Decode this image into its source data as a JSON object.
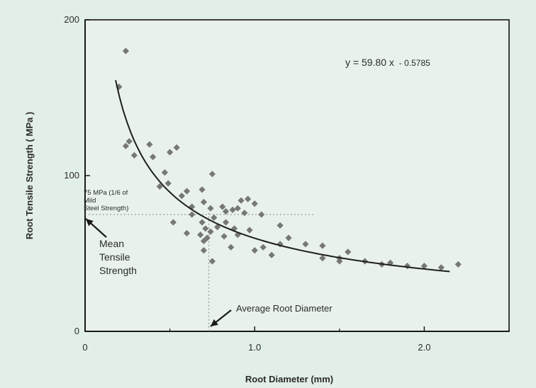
{
  "chart_data": {
    "type": "scatter",
    "title": "",
    "xlabel": "Root Diameter (mm)",
    "ylabel": "Root Tensile Strength (  MPa )",
    "xlim": [
      0,
      2.5
    ],
    "ylim": [
      0,
      200
    ],
    "x_ticks": [
      {
        "value": 0,
        "label": "0"
      },
      {
        "value": 1.0,
        "label": "1.0"
      },
      {
        "value": 2.0,
        "label": "2.0"
      }
    ],
    "y_ticks": [
      {
        "value": 0,
        "label": "0"
      },
      {
        "value": 100,
        "label": "100"
      },
      {
        "value": 200,
        "label": "200"
      }
    ],
    "grid": false,
    "points": [
      {
        "x": 0.24,
        "y": 180
      },
      {
        "x": 0.2,
        "y": 157
      },
      {
        "x": 0.24,
        "y": 119
      },
      {
        "x": 0.26,
        "y": 122
      },
      {
        "x": 0.29,
        "y": 113
      },
      {
        "x": 0.38,
        "y": 120
      },
      {
        "x": 0.4,
        "y": 112
      },
      {
        "x": 0.47,
        "y": 102
      },
      {
        "x": 0.5,
        "y": 115
      },
      {
        "x": 0.54,
        "y": 118
      },
      {
        "x": 0.44,
        "y": 93
      },
      {
        "x": 0.49,
        "y": 95
      },
      {
        "x": 0.57,
        "y": 87
      },
      {
        "x": 0.6,
        "y": 90
      },
      {
        "x": 0.69,
        "y": 91
      },
      {
        "x": 0.75,
        "y": 101
      },
      {
        "x": 0.63,
        "y": 80
      },
      {
        "x": 0.63,
        "y": 75
      },
      {
        "x": 0.7,
        "y": 83
      },
      {
        "x": 0.74,
        "y": 79
      },
      {
        "x": 0.76,
        "y": 73
      },
      {
        "x": 0.81,
        "y": 80
      },
      {
        "x": 0.83,
        "y": 77
      },
      {
        "x": 0.87,
        "y": 78
      },
      {
        "x": 0.9,
        "y": 79
      },
      {
        "x": 0.94,
        "y": 76
      },
      {
        "x": 0.96,
        "y": 85
      },
      {
        "x": 1.0,
        "y": 82
      },
      {
        "x": 0.92,
        "y": 84
      },
      {
        "x": 1.04,
        "y": 75
      },
      {
        "x": 0.69,
        "y": 70
      },
      {
        "x": 0.71,
        "y": 66
      },
      {
        "x": 0.74,
        "y": 64
      },
      {
        "x": 0.78,
        "y": 67
      },
      {
        "x": 0.83,
        "y": 70
      },
      {
        "x": 0.88,
        "y": 66
      },
      {
        "x": 0.68,
        "y": 62
      },
      {
        "x": 0.7,
        "y": 58
      },
      {
        "x": 0.72,
        "y": 60
      },
      {
        "x": 0.82,
        "y": 61
      },
      {
        "x": 0.9,
        "y": 62
      },
      {
        "x": 0.97,
        "y": 65
      },
      {
        "x": 0.6,
        "y": 63
      },
      {
        "x": 0.52,
        "y": 70
      },
      {
        "x": 0.7,
        "y": 52
      },
      {
        "x": 0.75,
        "y": 45
      },
      {
        "x": 0.86,
        "y": 54
      },
      {
        "x": 1.0,
        "y": 52
      },
      {
        "x": 1.05,
        "y": 54
      },
      {
        "x": 1.15,
        "y": 56
      },
      {
        "x": 1.1,
        "y": 49
      },
      {
        "x": 1.15,
        "y": 68
      },
      {
        "x": 1.2,
        "y": 60
      },
      {
        "x": 1.3,
        "y": 56
      },
      {
        "x": 1.4,
        "y": 55
      },
      {
        "x": 1.4,
        "y": 47
      },
      {
        "x": 1.5,
        "y": 47
      },
      {
        "x": 1.5,
        "y": 45
      },
      {
        "x": 1.55,
        "y": 51
      },
      {
        "x": 1.65,
        "y": 45
      },
      {
        "x": 1.75,
        "y": 43
      },
      {
        "x": 1.8,
        "y": 44
      },
      {
        "x": 1.9,
        "y": 42
      },
      {
        "x": 2.0,
        "y": 42
      },
      {
        "x": 2.1,
        "y": 41
      },
      {
        "x": 2.2,
        "y": 43
      }
    ],
    "fit": {
      "coefficient": 59.8,
      "exponent": -0.5785,
      "x_range": [
        0.18,
        2.15
      ]
    },
    "reference": {
      "x": 0.73,
      "y": 75
    }
  },
  "annotations": {
    "equation_main": "y = 59.80 x",
    "equation_exp": "- 0.5785",
    "steel_line1": "75 MPa (1/6 of",
    "steel_line2": "Mild",
    "steel_line3": "Steel Strength)",
    "mean_line1": "Mean",
    "mean_line2": "Tensile",
    "mean_line3": "Strength",
    "avg_diameter": "Average Root Diameter"
  },
  "colors": {
    "background": "#e2efe6",
    "plot_area": "#e8f2ea",
    "points": "#777777",
    "curve": "#1e1e1e",
    "text": "#2b2b2b"
  }
}
